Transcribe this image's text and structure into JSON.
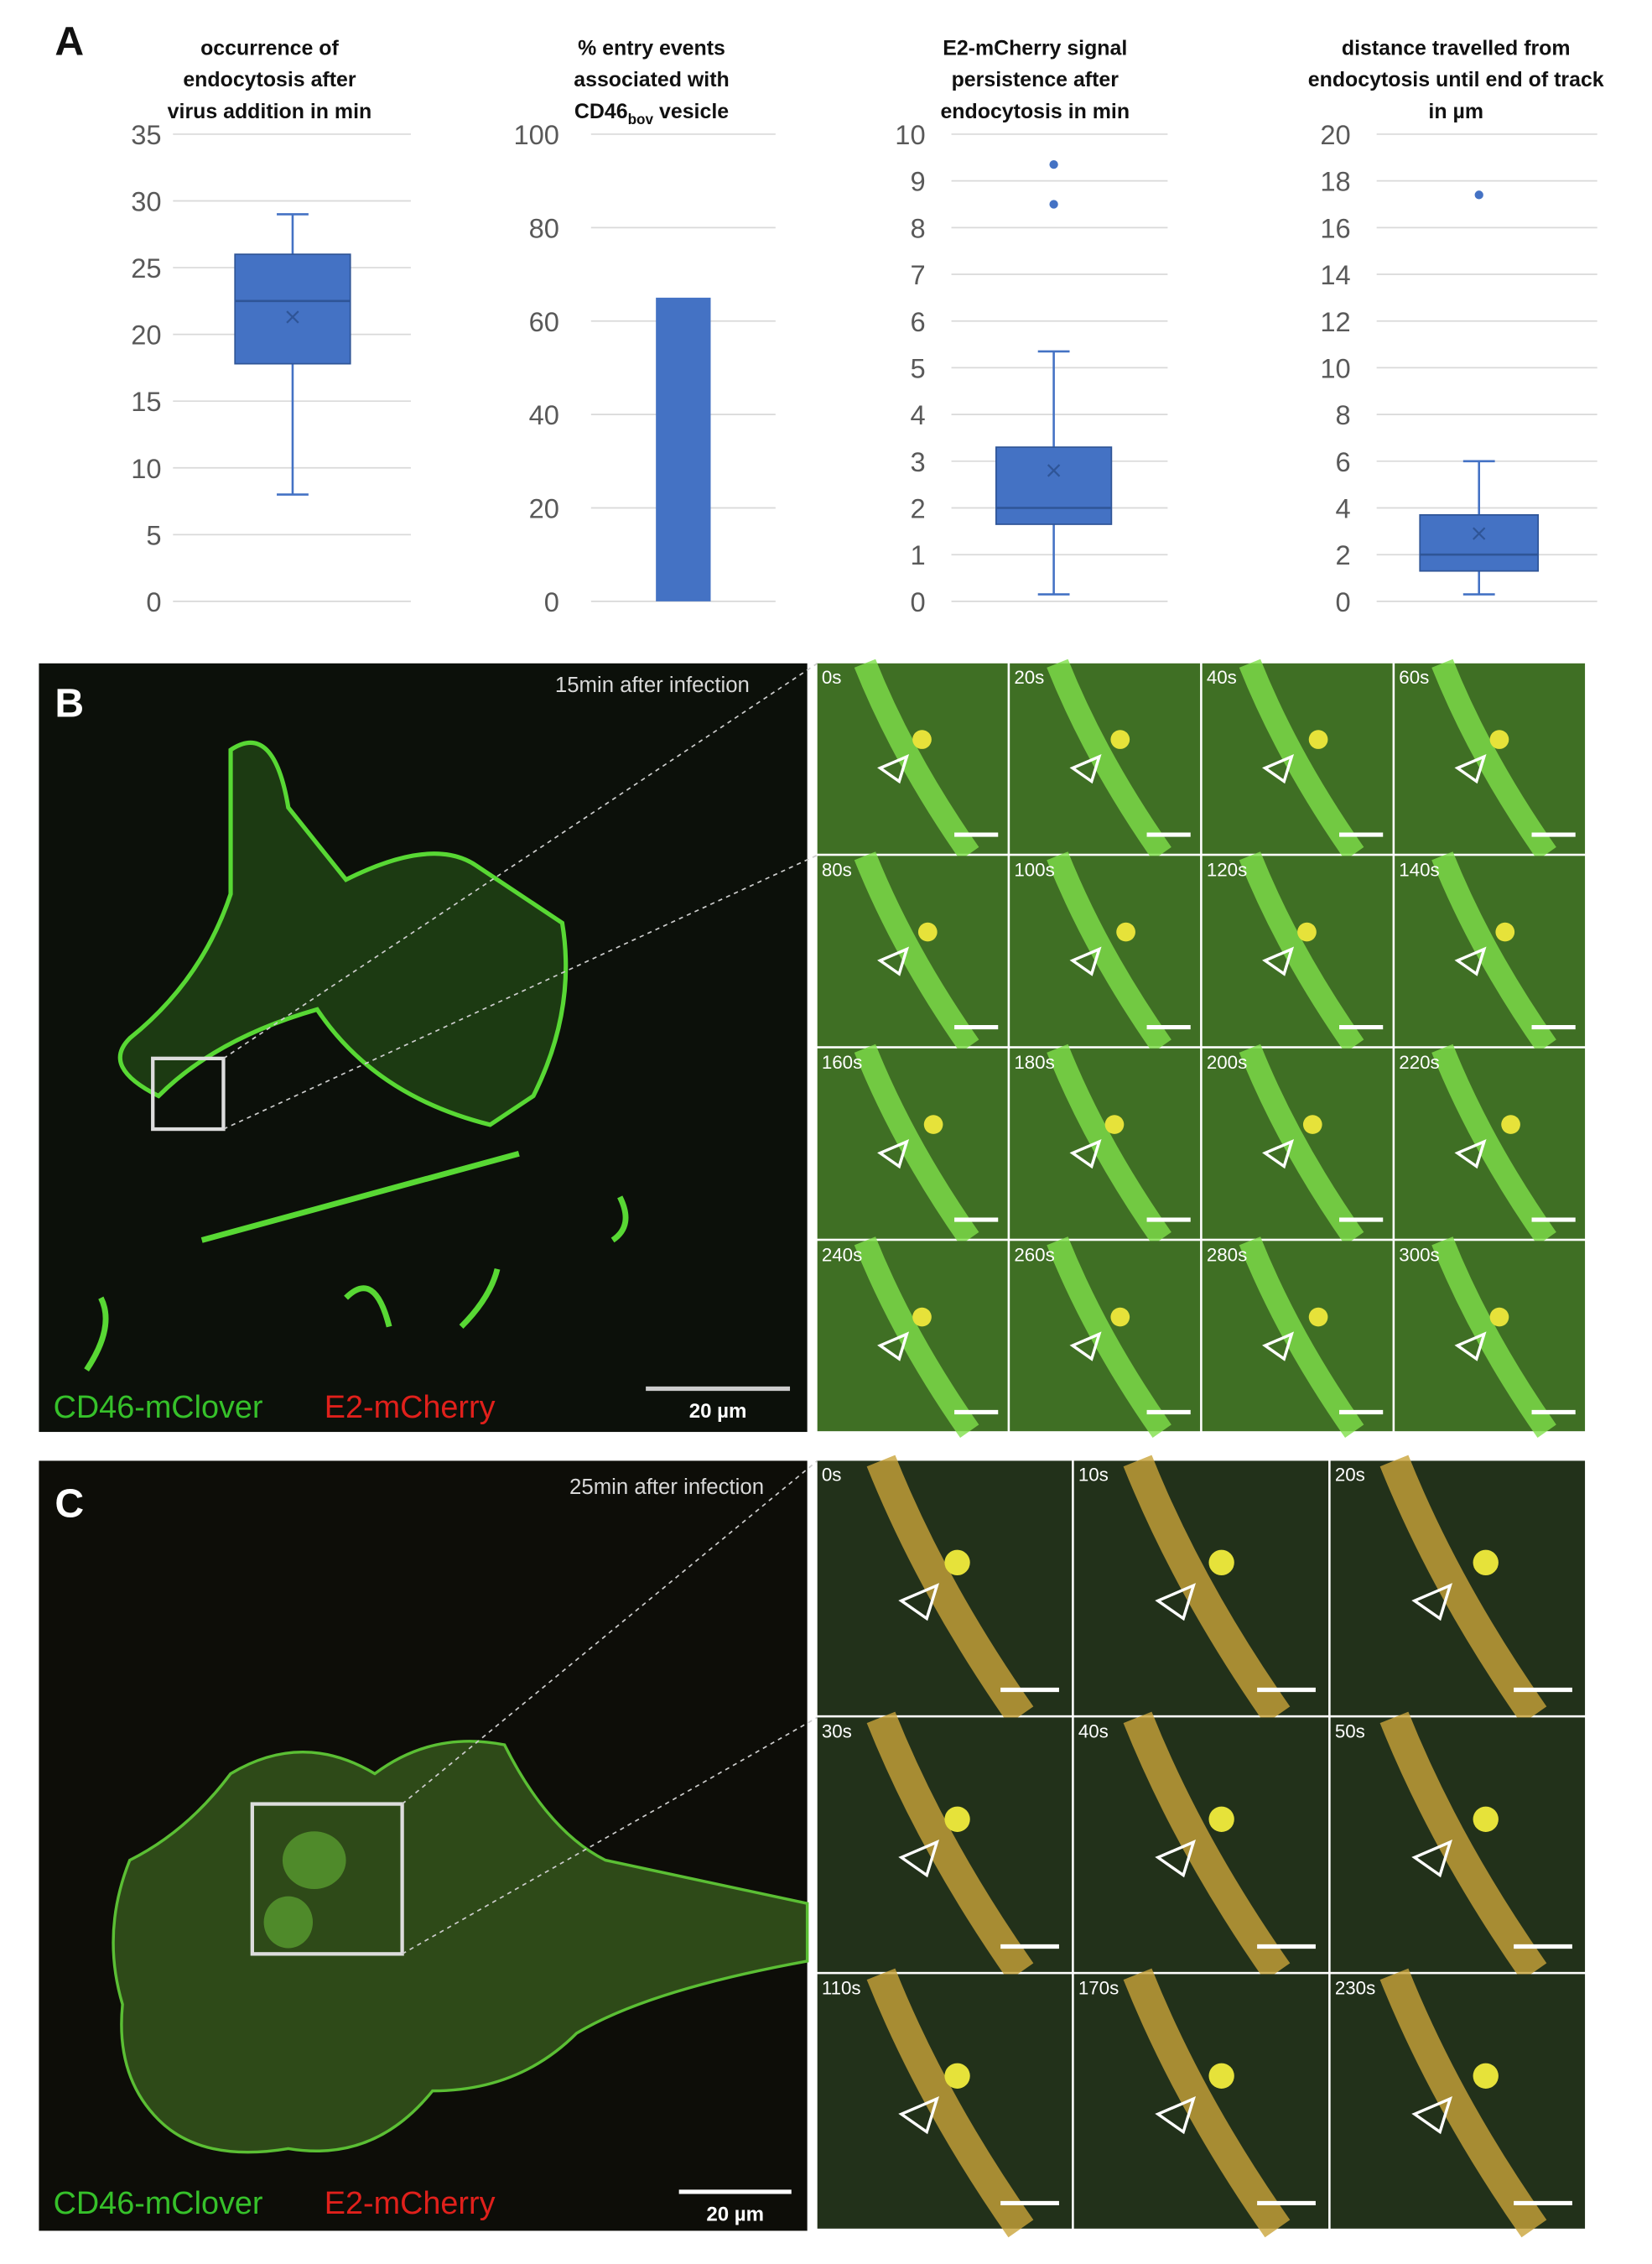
{
  "panel_labels": [
    "A",
    "B",
    "C"
  ],
  "chart_data": [
    {
      "type": "box",
      "title": [
        "occurrence of",
        "endocytosis after",
        "virus addition in min"
      ],
      "ylim": [
        0,
        35
      ],
      "yticks": [
        0,
        5,
        10,
        15,
        20,
        25,
        30,
        35
      ],
      "grid": true,
      "color": "#4472c4",
      "box": {
        "min": 8,
        "q1": 17.8,
        "median": 22.5,
        "q3": 26,
        "max": 29,
        "mean": 21.3,
        "outliers": []
      }
    },
    {
      "type": "bar",
      "title": [
        "% entry events",
        "associated with",
        [
          "CD46",
          "bov",
          "vesicle"
        ]
      ],
      "ylim": [
        0,
        100
      ],
      "yticks": [
        0,
        20,
        40,
        60,
        80,
        100
      ],
      "grid": true,
      "color": "#4472c4",
      "values": [
        65
      ]
    },
    {
      "type": "box",
      "title": [
        "E2-mCherry signal",
        "persistence after",
        "endocytosis in min"
      ],
      "ylim": [
        0,
        10
      ],
      "yticks": [
        0,
        1,
        2,
        3,
        4,
        5,
        6,
        7,
        8,
        9,
        10
      ],
      "grid": true,
      "color": "#4472c4",
      "box": {
        "min": 0.15,
        "q1": 1.65,
        "median": 2.0,
        "q3": 3.3,
        "max": 5.35,
        "mean": 2.8,
        "outliers": [
          8.5,
          9.35
        ]
      }
    },
    {
      "type": "box",
      "title": [
        "distance travelled from",
        "endocytosis until end of track",
        "in µm"
      ],
      "ylim": [
        0,
        20
      ],
      "yticks": [
        0,
        2,
        4,
        6,
        8,
        10,
        12,
        14,
        16,
        18,
        20
      ],
      "grid": true,
      "color": "#4472c4",
      "box": {
        "min": 0.3,
        "q1": 1.3,
        "median": 2.0,
        "q3": 3.7,
        "max": 6.0,
        "mean": 2.9,
        "outliers": [
          17.4
        ]
      }
    }
  ],
  "panel_b": {
    "caption": "15min after infection",
    "channels": [
      "CD46-mClover",
      "E2-mCherry"
    ],
    "scale_bar": "20 µm",
    "frames": [
      "0s",
      "20s",
      "40s",
      "60s",
      "80s",
      "100s",
      "120s",
      "140s",
      "160s",
      "180s",
      "200s",
      "220s",
      "240s",
      "260s",
      "280s",
      "300s"
    ]
  },
  "panel_c": {
    "caption": "25min after infection",
    "channels": [
      "CD46-mClover",
      "E2-mCherry"
    ],
    "scale_bar": "20 µm",
    "frames": [
      "0s",
      "10s",
      "20s",
      "30s",
      "40s",
      "50s",
      "110s",
      "170s",
      "230s"
    ]
  }
}
